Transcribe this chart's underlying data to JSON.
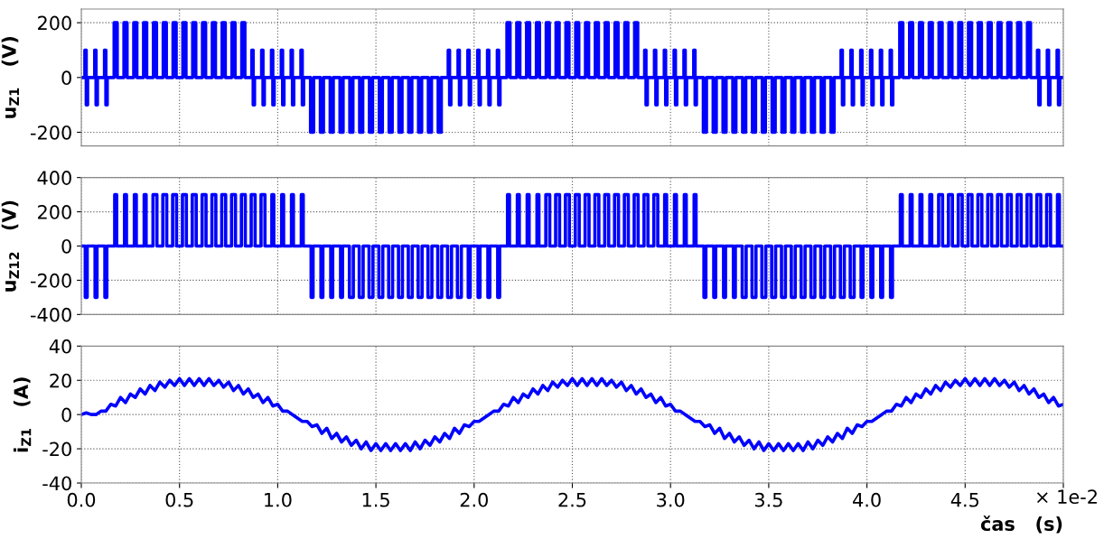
{
  "chart_data": [
    {
      "type": "step",
      "color": "#0000ff",
      "ylabel": "u$_{Z1}$   (V)",
      "xlim": [
        0,
        5
      ],
      "xticks": [
        0,
        0.5,
        1,
        1.5,
        2,
        2.5,
        3,
        3.5,
        4,
        4.5,
        5
      ],
      "ylim": [
        -250,
        250
      ],
      "yticks": [
        -200,
        0,
        200
      ],
      "grid": true,
      "tick_labels": "y",
      "x": [
        0,
        0.018,
        0.025,
        0.032,
        0.068,
        0.075,
        0.082,
        0.118,
        0.125,
        0.132,
        0.167,
        0.183,
        0.217,
        0.233,
        0.267,
        0.283,
        0.317,
        0.333,
        0.367,
        0.383,
        0.417,
        0.433,
        0.467,
        0.483,
        0.517,
        0.533,
        0.567,
        0.583,
        0.617,
        0.633,
        0.667,
        0.683,
        0.717,
        0.733,
        0.767,
        0.783,
        0.817,
        0.833,
        0.868,
        0.875,
        0.882,
        0.918,
        0.925,
        0.932,
        0.968,
        0.975,
        0.982,
        1.018,
        1.025,
        1.032,
        1.068,
        1.075,
        1.082,
        1.118,
        1.125,
        1.132,
        1.167,
        1.183,
        1.217,
        1.233,
        1.267,
        1.283,
        1.317,
        1.333,
        1.367,
        1.383,
        1.417,
        1.433,
        1.467,
        1.483,
        1.517,
        1.533,
        1.567,
        1.583,
        1.617,
        1.633,
        1.667,
        1.683,
        1.717,
        1.733,
        1.767,
        1.783,
        1.817,
        1.833,
        1.868,
        1.875,
        1.882,
        1.918,
        1.925,
        1.932,
        1.968,
        1.975,
        1.982,
        2.018,
        2.025,
        2.032,
        2.068,
        2.075,
        2.082,
        2.118,
        2.125,
        2.132,
        2.167,
        2.183,
        2.217,
        2.233,
        2.267,
        2.283,
        2.317,
        2.333,
        2.367,
        2.383,
        2.417,
        2.433,
        2.467,
        2.483,
        2.517,
        2.533,
        2.567,
        2.583,
        2.617,
        2.633,
        2.667,
        2.683,
        2.717,
        2.733,
        2.767,
        2.783,
        2.817,
        2.833,
        2.868,
        2.875,
        2.882,
        2.918,
        2.925,
        2.932,
        2.968,
        2.975,
        2.982,
        3.018,
        3.025,
        3.032,
        3.068,
        3.075,
        3.082,
        3.118,
        3.125,
        3.132,
        3.167,
        3.183,
        3.217,
        3.233,
        3.267,
        3.283,
        3.317,
        3.333,
        3.367,
        3.383,
        3.417,
        3.433,
        3.467,
        3.483,
        3.517,
        3.533,
        3.567,
        3.583,
        3.617,
        3.633,
        3.667,
        3.683,
        3.717,
        3.733,
        3.767,
        3.783,
        3.817,
        3.833,
        3.868,
        3.875,
        3.882,
        3.918,
        3.925,
        3.932,
        3.968,
        3.975,
        3.982,
        4.018,
        4.025,
        4.032,
        4.068,
        4.075,
        4.082,
        4.118,
        4.125,
        4.132,
        4.167,
        4.183,
        4.217,
        4.233,
        4.267,
        4.283,
        4.317,
        4.333,
        4.367,
        4.383,
        4.417,
        4.433,
        4.467,
        4.483,
        4.517,
        4.533,
        4.567,
        4.583,
        4.617,
        4.633,
        4.667,
        4.683,
        4.717,
        4.733,
        4.767,
        4.783,
        4.817,
        4.833,
        4.868,
        4.875,
        4.882,
        4.918,
        4.925,
        4.932,
        4.968,
        4.975,
        4.982,
        5
      ],
      "values": [
        0,
        100,
        -100,
        0,
        100,
        -100,
        0,
        100,
        -100,
        0,
        200,
        0,
        200,
        0,
        200,
        0,
        200,
        0,
        200,
        0,
        200,
        0,
        200,
        0,
        200,
        0,
        200,
        0,
        200,
        0,
        200,
        0,
        200,
        0,
        200,
        0,
        200,
        0,
        100,
        -100,
        0,
        100,
        -100,
        0,
        100,
        -100,
        0,
        100,
        -100,
        0,
        100,
        -100,
        0,
        100,
        -100,
        0,
        -200,
        0,
        -200,
        0,
        -200,
        0,
        -200,
        0,
        -200,
        0,
        -200,
        0,
        -200,
        0,
        -200,
        0,
        -200,
        0,
        -200,
        0,
        -200,
        0,
        -200,
        0,
        -200,
        0,
        -200,
        0,
        100,
        -100,
        0,
        100,
        -100,
        0,
        100,
        -100,
        0,
        100,
        -100,
        0,
        100,
        -100,
        0,
        100,
        -100,
        0,
        200,
        0,
        200,
        0,
        200,
        0,
        200,
        0,
        200,
        0,
        200,
        0,
        200,
        0,
        200,
        0,
        200,
        0,
        200,
        0,
        200,
        0,
        200,
        0,
        200,
        0,
        200,
        0,
        100,
        -100,
        0,
        100,
        -100,
        0,
        100,
        -100,
        0,
        100,
        -100,
        0,
        100,
        -100,
        0,
        100,
        -100,
        0,
        -200,
        0,
        -200,
        0,
        -200,
        0,
        -200,
        0,
        -200,
        0,
        -200,
        0,
        -200,
        0,
        -200,
        0,
        -200,
        0,
        -200,
        0,
        -200,
        0,
        -200,
        0,
        -200,
        0,
        -200,
        0,
        100,
        -100,
        0,
        100,
        -100,
        0,
        100,
        -100,
        0,
        100,
        -100,
        0,
        100,
        -100,
        0,
        100,
        -100,
        0,
        200,
        0,
        200,
        0,
        200,
        0,
        200,
        0,
        200,
        0,
        200,
        0,
        200,
        0,
        200,
        0,
        200,
        0,
        200,
        0,
        200,
        0,
        200,
        0,
        200,
        0,
        200,
        0,
        100,
        -100,
        0,
        100,
        -100,
        0,
        100,
        -100,
        0,
        0
      ]
    },
    {
      "type": "step",
      "color": "#0000ff",
      "ylabel": "u$_{Z12}$   (V)",
      "xlim": [
        0,
        5
      ],
      "xticks": [
        0,
        0.5,
        1,
        1.5,
        2,
        2.5,
        3,
        3.5,
        4,
        4.5,
        5
      ],
      "ylim": [
        -400,
        400
      ],
      "yticks": [
        -400,
        -200,
        0,
        200,
        400
      ],
      "grid": true,
      "tick_labels": "y",
      "x": [
        0,
        0.02,
        0.03,
        0.07,
        0.08,
        0.12,
        0.13,
        0.17,
        0.18,
        0.22,
        0.23,
        0.27,
        0.28,
        0.32,
        0.33,
        0.365,
        0.385,
        0.415,
        0.435,
        0.465,
        0.485,
        0.515,
        0.535,
        0.565,
        0.585,
        0.615,
        0.635,
        0.665,
        0.685,
        0.715,
        0.735,
        0.765,
        0.785,
        0.815,
        0.835,
        0.865,
        0.885,
        0.915,
        0.935,
        0.97,
        0.98,
        1.02,
        1.03,
        1.07,
        1.08,
        1.12,
        1.13,
        1.17,
        1.18,
        1.22,
        1.23,
        1.27,
        1.28,
        1.32,
        1.33,
        1.365,
        1.385,
        1.415,
        1.435,
        1.465,
        1.485,
        1.515,
        1.535,
        1.565,
        1.585,
        1.615,
        1.635,
        1.665,
        1.685,
        1.715,
        1.735,
        1.765,
        1.785,
        1.815,
        1.835,
        1.865,
        1.885,
        1.915,
        1.935,
        1.97,
        1.98,
        2.02,
        2.03,
        2.07,
        2.08,
        2.12,
        2.13,
        2.17,
        2.18,
        2.22,
        2.23,
        2.27,
        2.28,
        2.32,
        2.33,
        2.365,
        2.385,
        2.415,
        2.435,
        2.465,
        2.485,
        2.515,
        2.535,
        2.565,
        2.585,
        2.615,
        2.635,
        2.665,
        2.685,
        2.715,
        2.735,
        2.765,
        2.785,
        2.815,
        2.835,
        2.865,
        2.885,
        2.915,
        2.935,
        2.97,
        2.98,
        3.02,
        3.03,
        3.07,
        3.08,
        3.12,
        3.13,
        3.17,
        3.18,
        3.22,
        3.23,
        3.27,
        3.28,
        3.32,
        3.33,
        3.365,
        3.385,
        3.415,
        3.435,
        3.465,
        3.485,
        3.515,
        3.535,
        3.565,
        3.585,
        3.615,
        3.635,
        3.665,
        3.685,
        3.715,
        3.735,
        3.765,
        3.785,
        3.815,
        3.835,
        3.865,
        3.885,
        3.915,
        3.935,
        3.97,
        3.98,
        4.02,
        4.03,
        4.07,
        4.08,
        4.12,
        4.13,
        4.17,
        4.18,
        4.22,
        4.23,
        4.27,
        4.28,
        4.32,
        4.33,
        4.365,
        4.385,
        4.415,
        4.435,
        4.465,
        4.485,
        4.515,
        4.535,
        4.565,
        4.585,
        4.615,
        4.635,
        4.665,
        4.685,
        4.715,
        4.735,
        4.765,
        4.785,
        4.815,
        4.835,
        4.865,
        4.885,
        4.915,
        4.935,
        4.97,
        4.98,
        5
      ],
      "values": [
        0,
        -300,
        0,
        -300,
        0,
        -300,
        0,
        300,
        0,
        300,
        0,
        300,
        0,
        300,
        0,
        300,
        0,
        300,
        0,
        300,
        0,
        300,
        0,
        300,
        0,
        300,
        0,
        300,
        0,
        300,
        0,
        300,
        0,
        300,
        0,
        300,
        0,
        300,
        0,
        300,
        0,
        300,
        0,
        300,
        0,
        300,
        0,
        -300,
        0,
        -300,
        0,
        -300,
        0,
        -300,
        0,
        -300,
        0,
        -300,
        0,
        -300,
        0,
        -300,
        0,
        -300,
        0,
        -300,
        0,
        -300,
        0,
        -300,
        0,
        -300,
        0,
        -300,
        0,
        -300,
        0,
        -300,
        0,
        -300,
        0,
        -300,
        0,
        -300,
        0,
        -300,
        0,
        300,
        0,
        300,
        0,
        300,
        0,
        300,
        0,
        300,
        0,
        300,
        0,
        300,
        0,
        300,
        0,
        300,
        0,
        300,
        0,
        300,
        0,
        300,
        0,
        300,
        0,
        300,
        0,
        300,
        0,
        300,
        0,
        300,
        0,
        300,
        0,
        300,
        0,
        300,
        0,
        -300,
        0,
        -300,
        0,
        -300,
        0,
        -300,
        0,
        -300,
        0,
        -300,
        0,
        -300,
        0,
        -300,
        0,
        -300,
        0,
        -300,
        0,
        -300,
        0,
        -300,
        0,
        -300,
        0,
        -300,
        0,
        -300,
        0,
        -300,
        0,
        -300,
        0,
        -300,
        0,
        -300,
        0,
        -300,
        0,
        300,
        0,
        300,
        0,
        300,
        0,
        300,
        0,
        300,
        0,
        300,
        0,
        300,
        0,
        300,
        0,
        300,
        0,
        300,
        0,
        300,
        0,
        300,
        0,
        300,
        0,
        300,
        0,
        300,
        0,
        300,
        0,
        300,
        0,
        0
      ]
    },
    {
      "type": "line",
      "color": "#0000ff",
      "ylabel": "i$_{Z1}$   (A)",
      "xlabel": "čas   (s)",
      "annotations": [
        "× 1e-2"
      ],
      "xlim": [
        0,
        5
      ],
      "xticks": [
        {
          "value": 0,
          "label": "0.0"
        },
        {
          "value": 0.5,
          "label": "0.5"
        },
        {
          "value": 1,
          "label": "1.0"
        },
        {
          "value": 1.5,
          "label": "1.5"
        },
        {
          "value": 2,
          "label": "2.0"
        },
        {
          "value": 2.5,
          "label": "2.5"
        },
        {
          "value": 3,
          "label": "3.0"
        },
        {
          "value": 3.5,
          "label": "3.5"
        },
        {
          "value": 4,
          "label": "4.0"
        },
        {
          "value": 4.5,
          "label": "4.5"
        },
        {
          "value": 5,
          "label": null
        }
      ],
      "ylim": [
        -40,
        40
      ],
      "yticks": [
        -40,
        -20,
        0,
        20,
        40
      ],
      "grid": true,
      "x": [
        0,
        0.025,
        0.05,
        0.075,
        0.1,
        0.125,
        0.15,
        0.175,
        0.2,
        0.225,
        0.25,
        0.275,
        0.3,
        0.325,
        0.35,
        0.375,
        0.4,
        0.425,
        0.45,
        0.475,
        0.5,
        0.525,
        0.55,
        0.575,
        0.6,
        0.625,
        0.65,
        0.675,
        0.7,
        0.725,
        0.75,
        0.775,
        0.8,
        0.825,
        0.85,
        0.875,
        0.9,
        0.925,
        0.95,
        0.975,
        1,
        1.025,
        1.05,
        1.075,
        1.1,
        1.125,
        1.15,
        1.175,
        1.2,
        1.225,
        1.25,
        1.275,
        1.3,
        1.325,
        1.35,
        1.375,
        1.4,
        1.425,
        1.45,
        1.475,
        1.5,
        1.525,
        1.55,
        1.575,
        1.6,
        1.625,
        1.65,
        1.675,
        1.7,
        1.725,
        1.75,
        1.775,
        1.8,
        1.825,
        1.85,
        1.875,
        1.9,
        1.925,
        1.95,
        1.975,
        2,
        2.025,
        2.05,
        2.075,
        2.1,
        2.125,
        2.15,
        2.175,
        2.2,
        2.225,
        2.25,
        2.275,
        2.3,
        2.325,
        2.35,
        2.375,
        2.4,
        2.425,
        2.45,
        2.475,
        2.5,
        2.525,
        2.55,
        2.575,
        2.6,
        2.625,
        2.65,
        2.675,
        2.7,
        2.725,
        2.75,
        2.775,
        2.8,
        2.825,
        2.85,
        2.875,
        2.9,
        2.925,
        2.95,
        2.975,
        3,
        3.025,
        3.05,
        3.075,
        3.1,
        3.125,
        3.15,
        3.175,
        3.2,
        3.225,
        3.25,
        3.275,
        3.3,
        3.325,
        3.35,
        3.375,
        3.4,
        3.425,
        3.45,
        3.475,
        3.5,
        3.525,
        3.55,
        3.575,
        3.6,
        3.625,
        3.65,
        3.675,
        3.7,
        3.725,
        3.75,
        3.775,
        3.8,
        3.825,
        3.85,
        3.875,
        3.9,
        3.925,
        3.95,
        3.975,
        4,
        4.025,
        4.05,
        4.075,
        4.1,
        4.125,
        4.15,
        4.175,
        4.2,
        4.225,
        4.25,
        4.275,
        4.3,
        4.325,
        4.35,
        4.375,
        4.4,
        4.425,
        4.45,
        4.475,
        4.5,
        4.525,
        4.55,
        4.575,
        4.6,
        4.625,
        4.65,
        4.675,
        4.7,
        4.725,
        4.75,
        4.775,
        4.8,
        4.825,
        4.85,
        4.875,
        4.9,
        4.925,
        4.95,
        4.975,
        5
      ],
      "values": [
        0,
        1,
        0,
        0,
        2,
        2,
        6,
        5,
        10,
        7,
        12,
        10,
        15,
        12,
        17,
        14,
        19,
        16,
        20,
        17,
        21,
        17,
        21,
        17,
        21,
        17,
        21,
        17,
        20,
        16,
        19,
        14,
        17,
        12,
        15,
        10,
        12,
        7,
        10,
        5,
        6,
        2,
        2,
        0,
        -2,
        -4,
        -4,
        -7,
        -6,
        -11,
        -8,
        -14,
        -11,
        -16,
        -13,
        -18,
        -15,
        -20,
        -16,
        -21,
        -17,
        -21,
        -17,
        -21,
        -17,
        -21,
        -17,
        -21,
        -16,
        -20,
        -15,
        -18,
        -13,
        -16,
        -11,
        -14,
        -8,
        -11,
        -6,
        -7,
        -4,
        -4,
        -2,
        0,
        2,
        2,
        6,
        5,
        10,
        7,
        12,
        10,
        15,
        12,
        17,
        14,
        19,
        16,
        20,
        17,
        21,
        17,
        21,
        17,
        21,
        17,
        21,
        17,
        20,
        16,
        19,
        14,
        17,
        12,
        15,
        10,
        12,
        7,
        10,
        5,
        6,
        2,
        2,
        0,
        -2,
        -4,
        -4,
        -7,
        -6,
        -11,
        -8,
        -14,
        -11,
        -16,
        -13,
        -18,
        -15,
        -20,
        -16,
        -21,
        -17,
        -21,
        -17,
        -21,
        -17,
        -21,
        -17,
        -21,
        -16,
        -20,
        -15,
        -18,
        -13,
        -16,
        -11,
        -14,
        -8,
        -11,
        -6,
        -7,
        -4,
        -4,
        -2,
        0,
        2,
        2,
        6,
        5,
        10,
        7,
        12,
        10,
        15,
        12,
        17,
        14,
        19,
        16,
        20,
        17,
        21,
        17,
        21,
        17,
        21,
        17,
        21,
        17,
        20,
        16,
        19,
        14,
        17,
        12,
        15,
        10,
        12,
        7,
        10,
        5,
        6
      ]
    }
  ]
}
